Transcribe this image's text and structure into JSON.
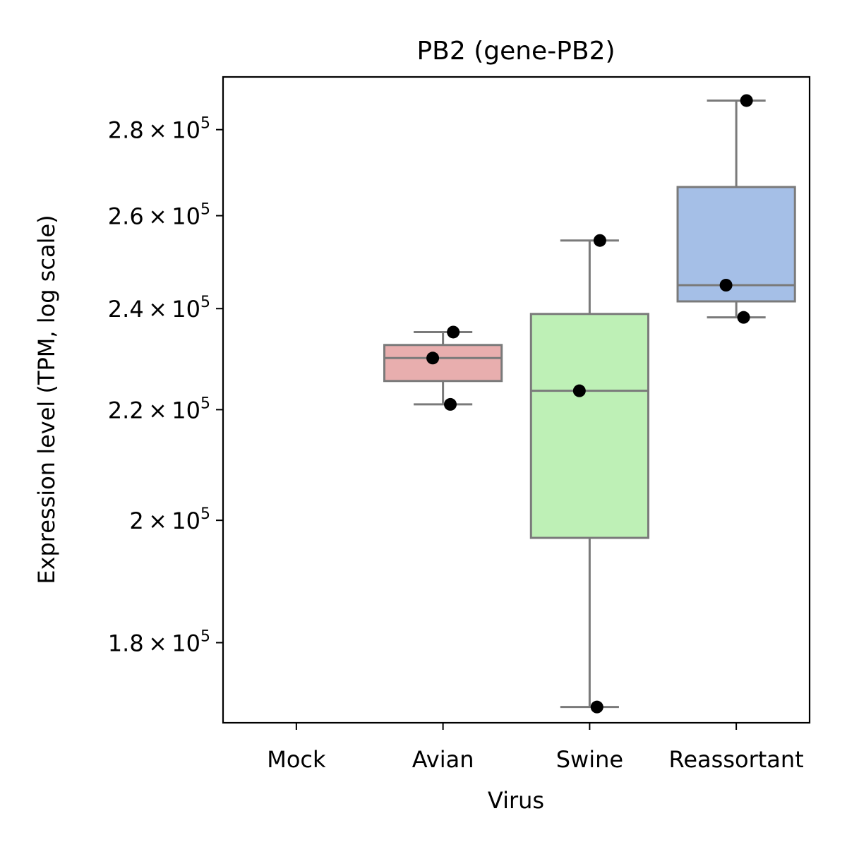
{
  "chart_data": {
    "type": "box",
    "title": "PB2 (gene-PB2)",
    "xlabel": "Virus",
    "ylabel": "Expression level (TPM, log scale)",
    "yscale": "log",
    "ylim": [
      168000,
      293000
    ],
    "categories": [
      "Mock",
      "Avian",
      "Swine",
      "Reassortant"
    ],
    "y_ticks": [
      {
        "value": 180000,
        "mantissa": "1.8",
        "times": "×",
        "base": "10",
        "exp": "5"
      },
      {
        "value": 200000,
        "mantissa": "2",
        "times": "×",
        "base": "10",
        "exp": "5"
      },
      {
        "value": 220000,
        "mantissa": "2.2",
        "times": "×",
        "base": "10",
        "exp": "5"
      },
      {
        "value": 240000,
        "mantissa": "2.4",
        "times": "×",
        "base": "10",
        "exp": "5"
      },
      {
        "value": 260000,
        "mantissa": "2.6",
        "times": "×",
        "base": "10",
        "exp": "5"
      },
      {
        "value": 280000,
        "mantissa": "2.8",
        "times": "×",
        "base": "10",
        "exp": "5"
      }
    ],
    "boxes": [
      {
        "category": "Mock",
        "color": null,
        "stats": null,
        "points": []
      },
      {
        "category": "Avian",
        "color": "#e8aeae",
        "stats": {
          "whislo": 221000,
          "q1": 225500,
          "median": 230000,
          "q3": 232600,
          "whishi": 235200
        },
        "points": [
          235200,
          230000,
          221000
        ]
      },
      {
        "category": "Swine",
        "color": "#bef0b6",
        "stats": {
          "whislo": 170300,
          "q1": 197000,
          "median": 223600,
          "q3": 238900,
          "whishi": 254500
        },
        "points": [
          254500,
          223600,
          170300
        ]
      },
      {
        "category": "Reassortant",
        "color": "#a5bfe7",
        "stats": {
          "whislo": 238200,
          "q1": 241500,
          "median": 244900,
          "q3": 266500,
          "whishi": 287100
        },
        "points": [
          287100,
          244900,
          238200
        ]
      }
    ],
    "box_edge_color": "#7a7a7a",
    "point_color": "#000000",
    "grid": false,
    "legend": "none"
  }
}
